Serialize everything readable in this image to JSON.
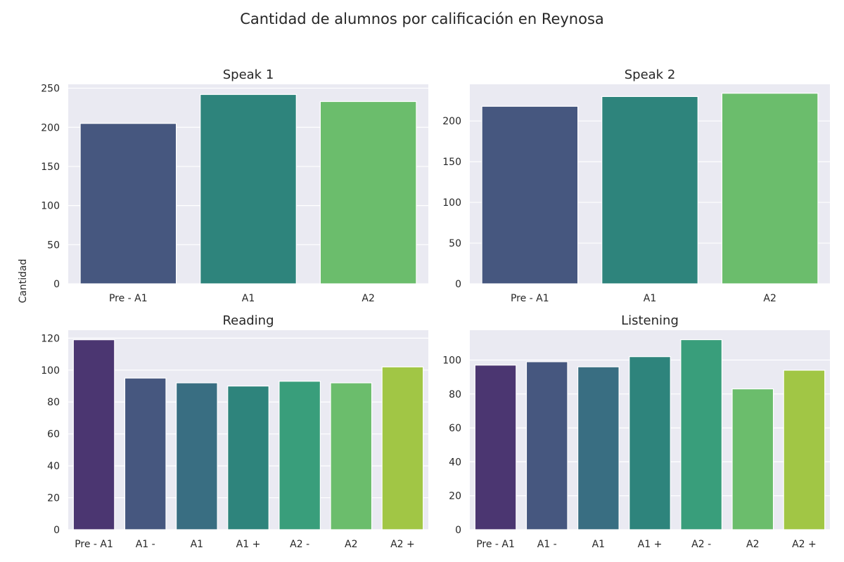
{
  "figure": {
    "title": "Cantidad de alumnos por calificación en Reynosa",
    "ylabel": "Cantidad"
  },
  "chart_data": [
    {
      "type": "bar",
      "title": "Speak 1",
      "categories": [
        "Pre - A1",
        "A1",
        "A2"
      ],
      "values": [
        205,
        242,
        233
      ],
      "colors": [
        "#46577f",
        "#2e847c",
        "#6bbd6c"
      ],
      "ylim": [
        0,
        255
      ],
      "yticks": [
        0,
        50,
        100,
        150,
        200,
        250
      ],
      "grid": true
    },
    {
      "type": "bar",
      "title": "Speak 2",
      "categories": [
        "Pre - A1",
        "A1",
        "A2"
      ],
      "values": [
        218,
        230,
        234
      ],
      "colors": [
        "#46577f",
        "#2e847c",
        "#6bbd6c"
      ],
      "ylim": [
        0,
        245
      ],
      "yticks": [
        0,
        50,
        100,
        150,
        200
      ],
      "grid": true
    },
    {
      "type": "bar",
      "title": "Reading",
      "categories": [
        "Pre - A1",
        "A1 -",
        "A1",
        "A1 +",
        "A2 -",
        "A2",
        "A2 +"
      ],
      "values": [
        119,
        95,
        92,
        90,
        93,
        92,
        102
      ],
      "colors": [
        "#4b3671",
        "#46577f",
        "#396e82",
        "#2e847c",
        "#399e7b",
        "#6bbd6c",
        "#a1c645"
      ],
      "ylim": [
        0,
        125
      ],
      "yticks": [
        0,
        20,
        40,
        60,
        80,
        100,
        120
      ],
      "grid": true
    },
    {
      "type": "bar",
      "title": "Listening",
      "categories": [
        "Pre - A1",
        "A1 -",
        "A1",
        "A1 +",
        "A2 -",
        "A2",
        "A2 +"
      ],
      "values": [
        97,
        99,
        96,
        102,
        112,
        83,
        94
      ],
      "colors": [
        "#4b3671",
        "#46577f",
        "#396e82",
        "#2e847c",
        "#399e7b",
        "#6bbd6c",
        "#a1c645"
      ],
      "ylim": [
        0,
        117.6
      ],
      "yticks": [
        0,
        20,
        40,
        60,
        80,
        100
      ],
      "grid": true
    }
  ]
}
